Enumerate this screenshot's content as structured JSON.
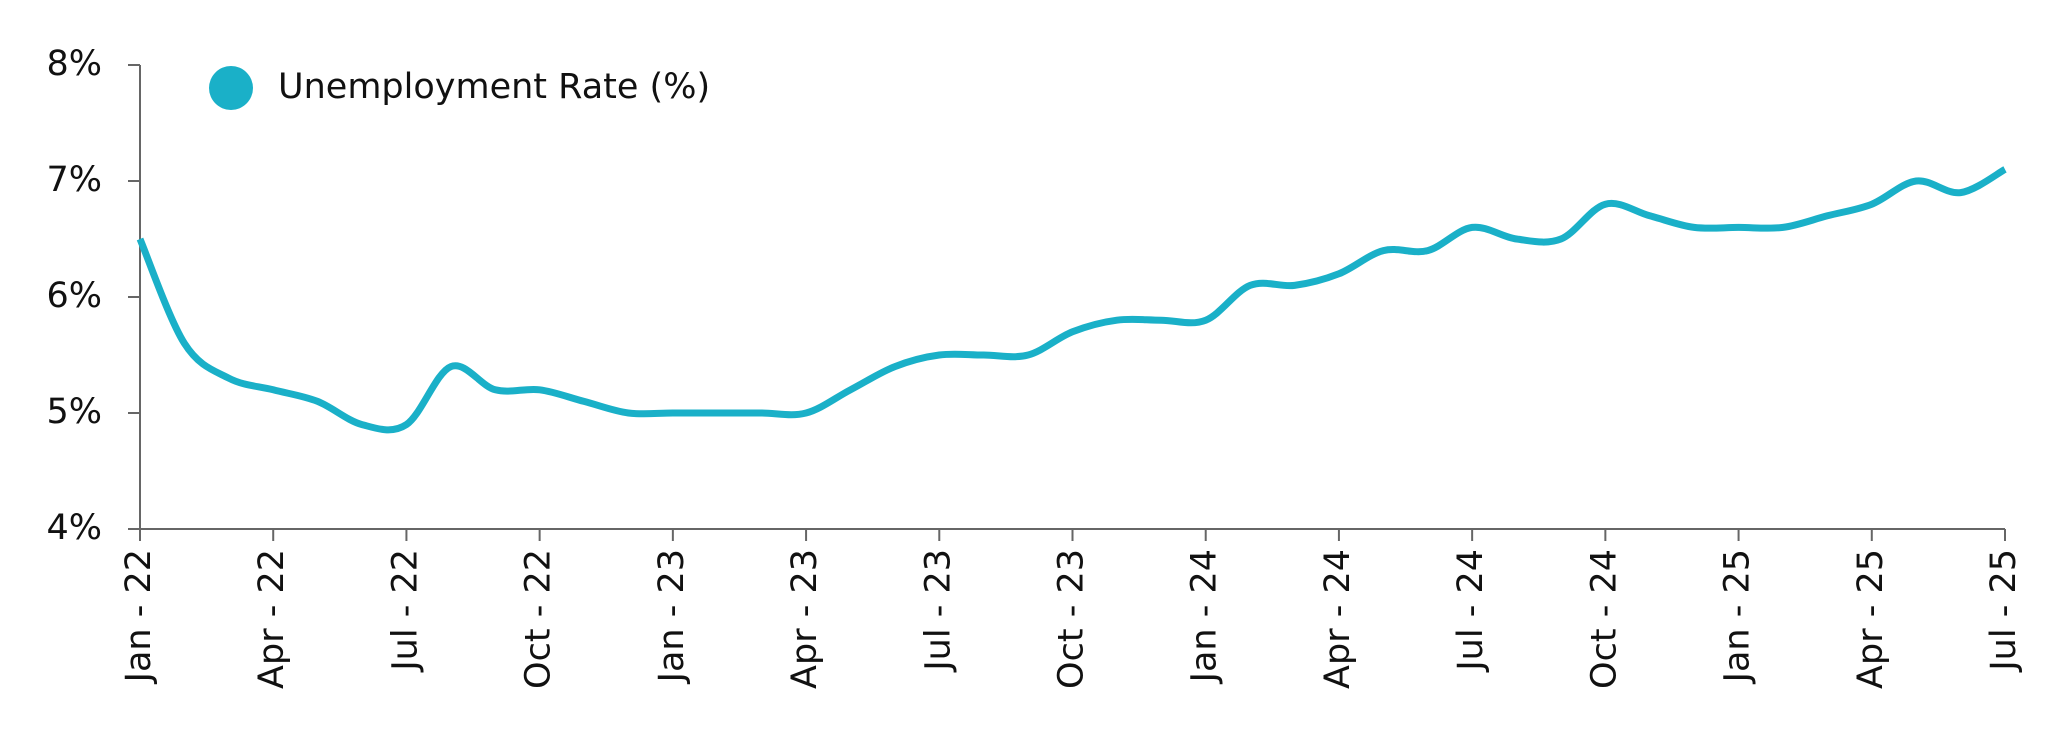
{
  "chart_data": {
    "type": "line",
    "categories": [
      "Jan - 22",
      null,
      null,
      "Apr - 22",
      null,
      null,
      "Jul - 22",
      null,
      null,
      "Oct - 22",
      null,
      null,
      "Jan - 23",
      null,
      null,
      "Apr - 23",
      null,
      null,
      "Jul - 23",
      null,
      null,
      "Oct - 23",
      null,
      null,
      "Jan - 24",
      null,
      null,
      "Apr - 24",
      null,
      null,
      "Jul - 24",
      null,
      null,
      "Oct - 24",
      null,
      null,
      "Jan - 25",
      null,
      null,
      "Apr - 25",
      null,
      null,
      "Jul - 25"
    ],
    "series": [
      {
        "name": "Unemployment Rate (%)",
        "color": "#1ab0c8",
        "values": [
          6.5,
          5.6,
          5.3,
          5.2,
          5.1,
          4.9,
          4.9,
          5.4,
          5.2,
          5.2,
          5.1,
          5.0,
          5.0,
          5.0,
          5.0,
          5.0,
          5.2,
          5.4,
          5.5,
          5.5,
          5.5,
          5.7,
          5.8,
          5.8,
          5.8,
          6.1,
          6.1,
          6.2,
          6.4,
          6.4,
          6.6,
          6.5,
          6.5,
          6.8,
          6.7,
          6.6,
          6.6,
          6.6,
          6.7,
          6.8,
          7.0,
          6.9,
          7.1
        ]
      }
    ],
    "ylim": [
      4,
      8
    ],
    "yticks": [
      {
        "value": 4,
        "label": "4%"
      },
      {
        "value": 5,
        "label": "5%"
      },
      {
        "value": 6,
        "label": "6%"
      },
      {
        "value": 7,
        "label": "7%"
      },
      {
        "value": 8,
        "label": "8%"
      }
    ],
    "legend": "top-left"
  }
}
